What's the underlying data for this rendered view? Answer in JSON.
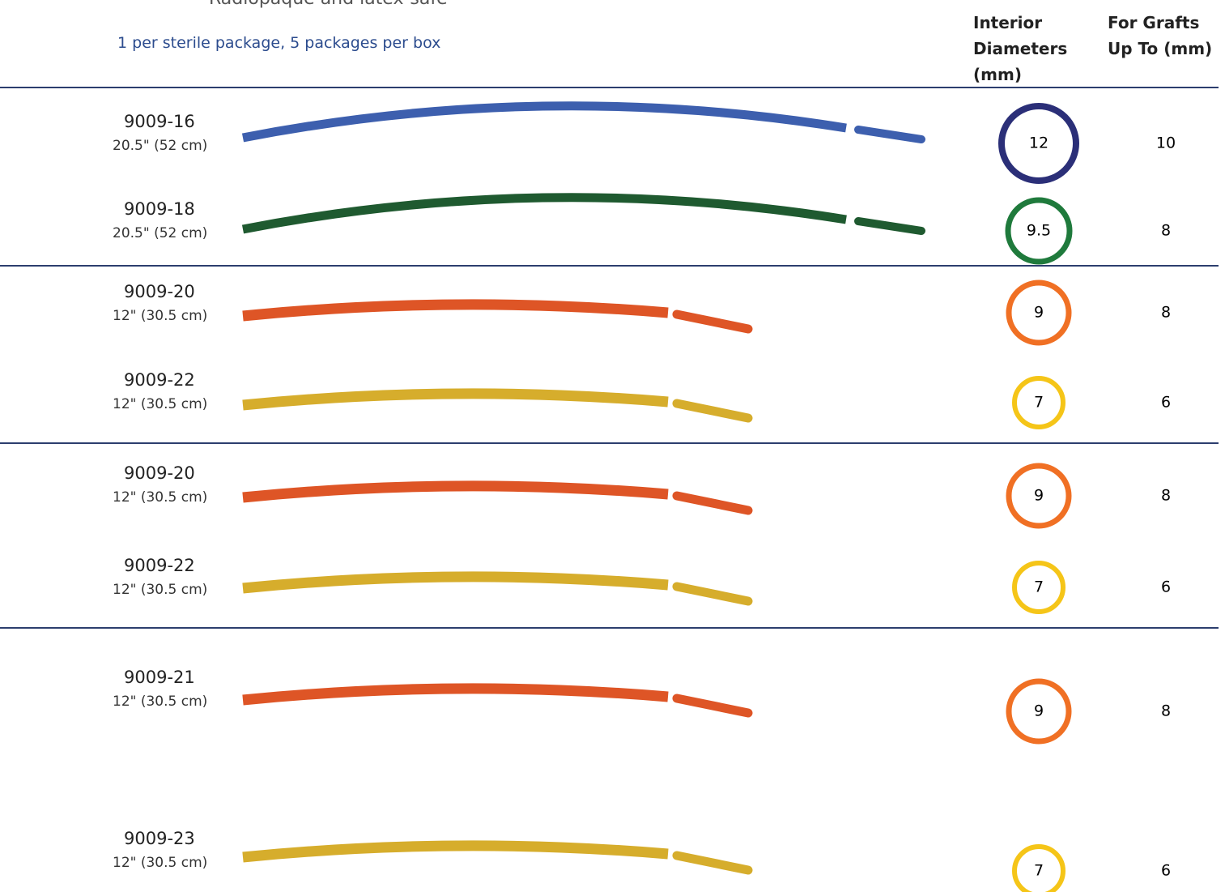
{
  "header": {
    "bullet": "Radiopaque and latex-safe",
    "note": "1 per sterile package,  5 packages per box",
    "columns": [
      "Interior Diameters (mm)",
      "For Grafts Up To (mm)"
    ]
  },
  "table": {
    "rows": [
      [
        "9009-16",
        "20.5\" (52 cm)",
        "12",
        "10"
      ],
      [
        "9009-18",
        "20.5\" (52 cm)",
        "9.5",
        "8"
      ],
      [
        "9009-20",
        "12\" (30.5 cm)",
        "9",
        "8"
      ],
      [
        "9009-22",
        "12\" (30.5 cm)",
        "7",
        "6"
      ],
      [
        "9009-20",
        "12\" (30.5 cm)",
        "9",
        "8"
      ],
      [
        "9009-22",
        "12\" (30.5 cm)",
        "7",
        "6"
      ],
      [
        "9009-21",
        "12\" (30.5 cm)",
        "9",
        "8"
      ],
      [
        "9009-23",
        "12\" (30.5 cm)",
        "7",
        "6"
      ]
    ]
  }
}
